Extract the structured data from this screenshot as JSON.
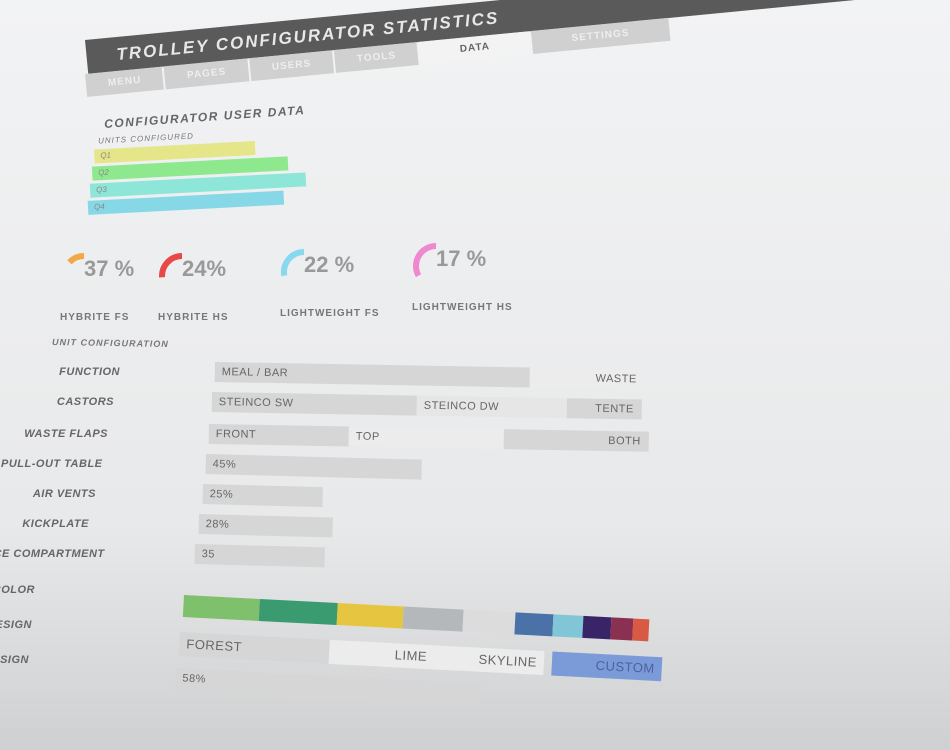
{
  "header": {
    "title": "TROLLEY CONFIGURATOR STATISTICS"
  },
  "tabs": [
    "MENU",
    "PAGES",
    "USERS",
    "TOOLS",
    "DATA",
    "SETTINGS"
  ],
  "active_tab": "DATA",
  "section_title": "CONFIGURATOR USER DATA",
  "units": {
    "label": "UNITS CONFIGURED",
    "bars": [
      {
        "label": "Q1",
        "value": 155,
        "color": "#e5e58a"
      },
      {
        "label": "Q2",
        "value": 190,
        "color": "#8ee88e"
      },
      {
        "label": "Q3",
        "value": 210,
        "color": "#8ee6d8"
      },
      {
        "label": "Q4",
        "value": 190,
        "color": "#86d8e6"
      }
    ]
  },
  "gauges": [
    {
      "value": "37 %",
      "label": "HYBRITE FS",
      "fraction": 0.37,
      "color": "#f0a848"
    },
    {
      "value": "24%",
      "label": "HYBRITE HS",
      "fraction": 0.24,
      "color": "#e84848"
    },
    {
      "value": "22 %",
      "label": "LIGHTWEIGHT FS",
      "fraction": 0.22,
      "color": "#88d8f0"
    },
    {
      "value": "17 %",
      "label": "LIGHTWEIGHT HS",
      "fraction": 0.17,
      "color": "#f088d0"
    }
  ],
  "unit_config": {
    "title": "UNIT CONFIGURATION",
    "rows": [
      {
        "label": "FUNCTION",
        "options": [
          "MEAL / BAR",
          "WASTE"
        ]
      },
      {
        "label": "CASTORS",
        "options": [
          "STEINCO SW",
          "STEINCO DW",
          "TENTE"
        ]
      },
      {
        "label": "WASTE FLAPS",
        "options": [
          "FRONT",
          "TOP",
          "BOTH"
        ]
      },
      {
        "label": "PULL-OUT TABLE",
        "value": "45%"
      },
      {
        "label": "AIR VENTS",
        "value": "25%"
      },
      {
        "label": "KICKPLATE",
        "value": "28%"
      },
      {
        "label": "ICE COMPARTMENT",
        "value": "35"
      }
    ]
  },
  "bottom": {
    "labels": [
      "COLOR",
      "DESIGN",
      "DESIGN"
    ],
    "colors": [
      "#7fc06c",
      "#3a9a70",
      "#e6c640",
      "#b4b8ba",
      "#dcdcdc",
      "#4a72a8",
      "#80c6d6",
      "#3a2468",
      "#8a3050",
      "#d85a44"
    ],
    "designs": [
      "FOREST",
      "LIME",
      "SKYLINE",
      "CUSTOM"
    ],
    "design_value": "58%"
  }
}
